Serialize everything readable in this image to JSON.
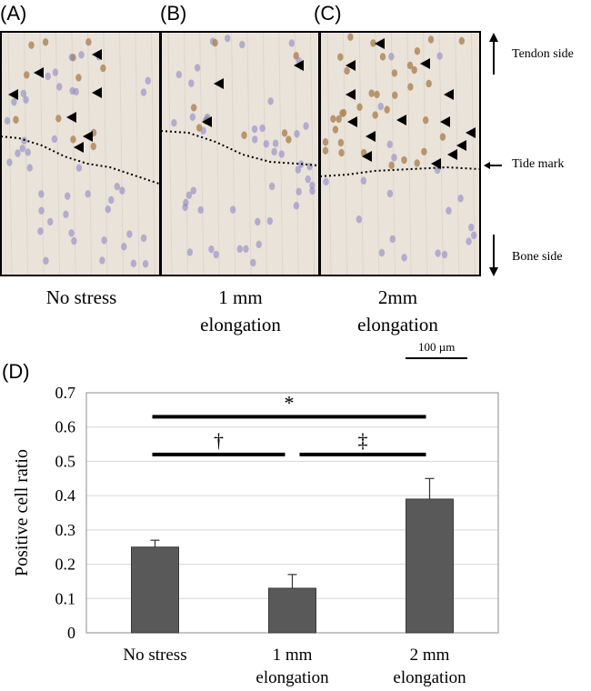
{
  "figure": {
    "panel_labels": [
      "(A)",
      "(B)",
      "(C)"
    ],
    "panel_captions": [
      [
        "No stress"
      ],
      [
        "1 mm",
        "elongation"
      ],
      [
        "2mm",
        "elongation"
      ]
    ],
    "side_labels": {
      "tendon": "Tendon side",
      "tide": "Tide mark",
      "bone": "Bone side"
    },
    "scale_bar": "100 µm",
    "chart_label": "(D)"
  },
  "colors": {
    "bar": "#595959",
    "tissue_bg": "#e9e3da",
    "cell_positive": "#b0875a",
    "cell_negative": "#8e87c4"
  },
  "chart_data": {
    "type": "bar",
    "categories": [
      [
        "No stress"
      ],
      [
        "1 mm",
        "elongation"
      ],
      [
        "2 mm",
        "elongation"
      ]
    ],
    "values": [
      0.25,
      0.13,
      0.39
    ],
    "errors": [
      0.02,
      0.04,
      0.06
    ],
    "ylabel": "Positive cell ratio",
    "ylim": [
      0,
      0.7
    ],
    "yticks": [
      "0",
      "0.1",
      "0.2",
      "0.3",
      "0.4",
      "0.5",
      "0.6",
      "0.7"
    ],
    "grid": true,
    "significance": [
      {
        "from": 0,
        "to": 2,
        "level": 0.63,
        "symbol": "*"
      },
      {
        "from": 0,
        "to": 1,
        "level": 0.52,
        "symbol": "†"
      },
      {
        "from": 1,
        "to": 2,
        "level": 0.52,
        "symbol": "‡"
      }
    ]
  }
}
